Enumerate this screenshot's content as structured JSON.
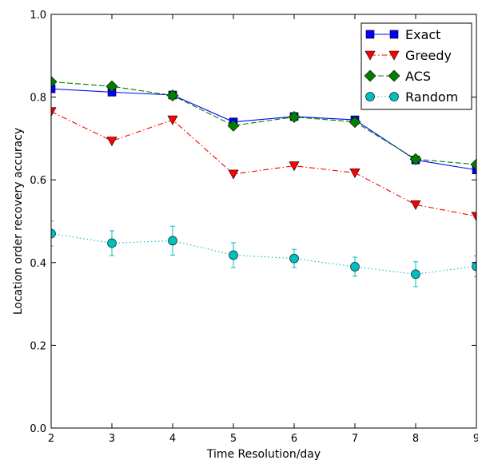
{
  "chart_data": {
    "type": "line",
    "xlabel": "Time Resolution/day",
    "ylabel": "Location order recovery accuracy",
    "xlim": [
      2,
      9
    ],
    "ylim": [
      0.0,
      1.0
    ],
    "x_ticks": [
      "2",
      "3",
      "4",
      "5",
      "6",
      "7",
      "8",
      "9"
    ],
    "y_ticks": [
      "0.0",
      "0.2",
      "0.4",
      "0.6",
      "0.8",
      "1.0"
    ],
    "x": [
      2,
      3,
      4,
      5,
      6,
      7,
      8,
      9
    ],
    "grid": false,
    "legend_position": "top-right",
    "series": [
      {
        "name": "Exact",
        "color": "#0000ff",
        "marker": "square",
        "line": "solid",
        "values": [
          0.82,
          0.812,
          0.805,
          0.74,
          0.753,
          0.745,
          0.648,
          0.624
        ]
      },
      {
        "name": "Greedy",
        "color": "#ff0000",
        "marker": "triangle-down",
        "line": "dashdot",
        "values": [
          0.765,
          0.694,
          0.745,
          0.614,
          0.634,
          0.617,
          0.54,
          0.512
        ]
      },
      {
        "name": "ACS",
        "color": "#008000",
        "marker": "diamond",
        "line": "dashed",
        "errorbars": true,
        "values": [
          0.837,
          0.826,
          0.804,
          0.731,
          0.752,
          0.74,
          0.65,
          0.637
        ]
      },
      {
        "name": "Random",
        "color": "#00bfbf",
        "marker": "circle",
        "line": "dotted",
        "errorbars": true,
        "values": [
          0.47,
          0.447,
          0.453,
          0.418,
          0.41,
          0.39,
          0.372,
          0.391
        ],
        "errors": [
          0.03,
          0.03,
          0.035,
          0.03,
          0.022,
          0.023,
          0.03,
          0.025
        ]
      }
    ]
  }
}
